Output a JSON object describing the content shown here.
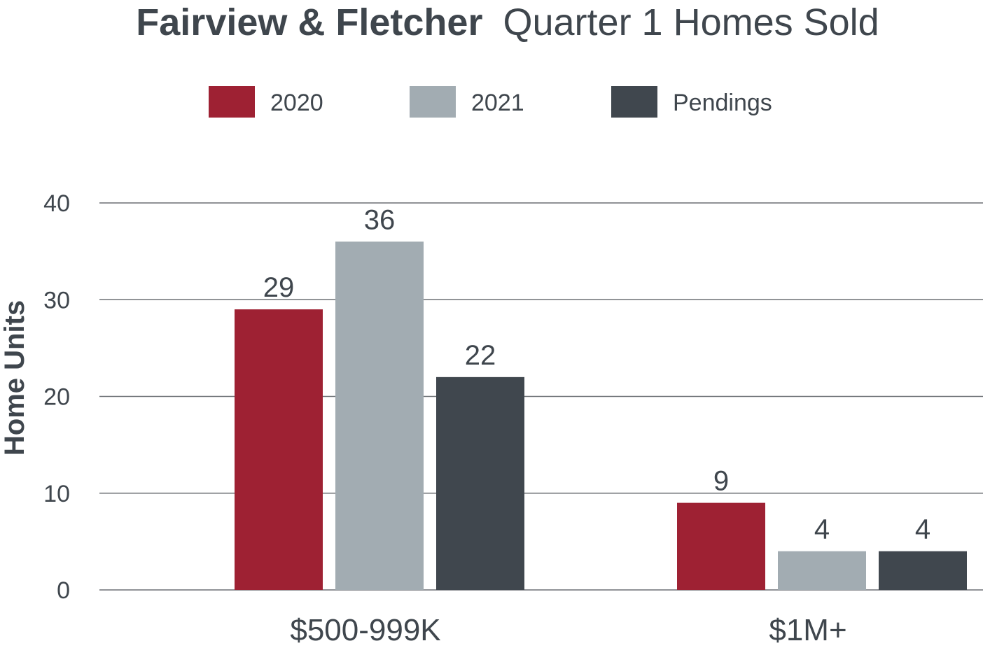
{
  "chart_data": {
    "type": "bar",
    "title_bold": "Fairview & Fletcher",
    "title_rest": "Quarter 1 Homes Sold",
    "xlabel": "",
    "ylabel": "Home Units",
    "ylim": [
      0,
      40
    ],
    "yticks": [
      0,
      10,
      20,
      30,
      40
    ],
    "grid": true,
    "legend_position": "top",
    "categories": [
      "$500-999K",
      "$1M+"
    ],
    "series": [
      {
        "name": "2020",
        "color": "#9e2133",
        "values": [
          29,
          9
        ]
      },
      {
        "name": "2021",
        "color": "#a2acb2",
        "values": [
          36,
          4
        ]
      },
      {
        "name": "Pendings",
        "color": "#40474e",
        "values": [
          22,
          4
        ]
      }
    ],
    "colors": {
      "text": "#3f464d",
      "grid": "#6b6f73"
    }
  }
}
